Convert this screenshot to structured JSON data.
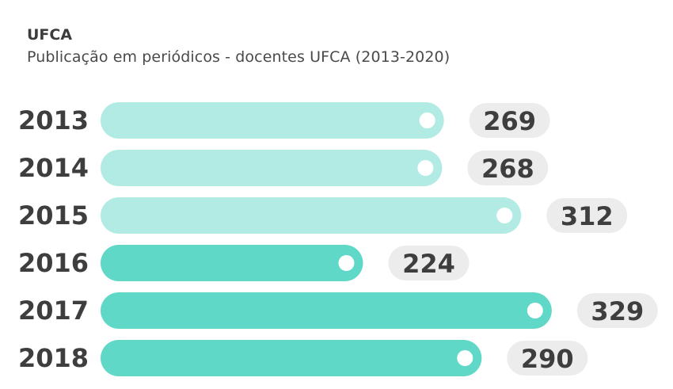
{
  "header": {
    "title": "UFCA",
    "subtitle": "Publicação em periódicos - docentes UFCA (2013-2020)"
  },
  "colors": {
    "light_bar": "#b2ebe3",
    "dark_bar": "#5fd8c8",
    "value_pill": "#ececec",
    "knob": "#ffffff",
    "text": "#3e3e3e"
  },
  "chart_data": {
    "type": "bar",
    "orientation": "horizontal",
    "categories": [
      "2013",
      "2014",
      "2015",
      "2016",
      "2017",
      "2018"
    ],
    "values": [
      269,
      268,
      312,
      224,
      329,
      290
    ],
    "shades": [
      "light",
      "light",
      "light",
      "dark",
      "dark",
      "dark"
    ],
    "title": "UFCA",
    "subtitle": "Publicação em periódicos - docentes UFCA (2013-2020)",
    "xlabel": "",
    "ylabel": "",
    "grid": false,
    "legend": "none"
  }
}
